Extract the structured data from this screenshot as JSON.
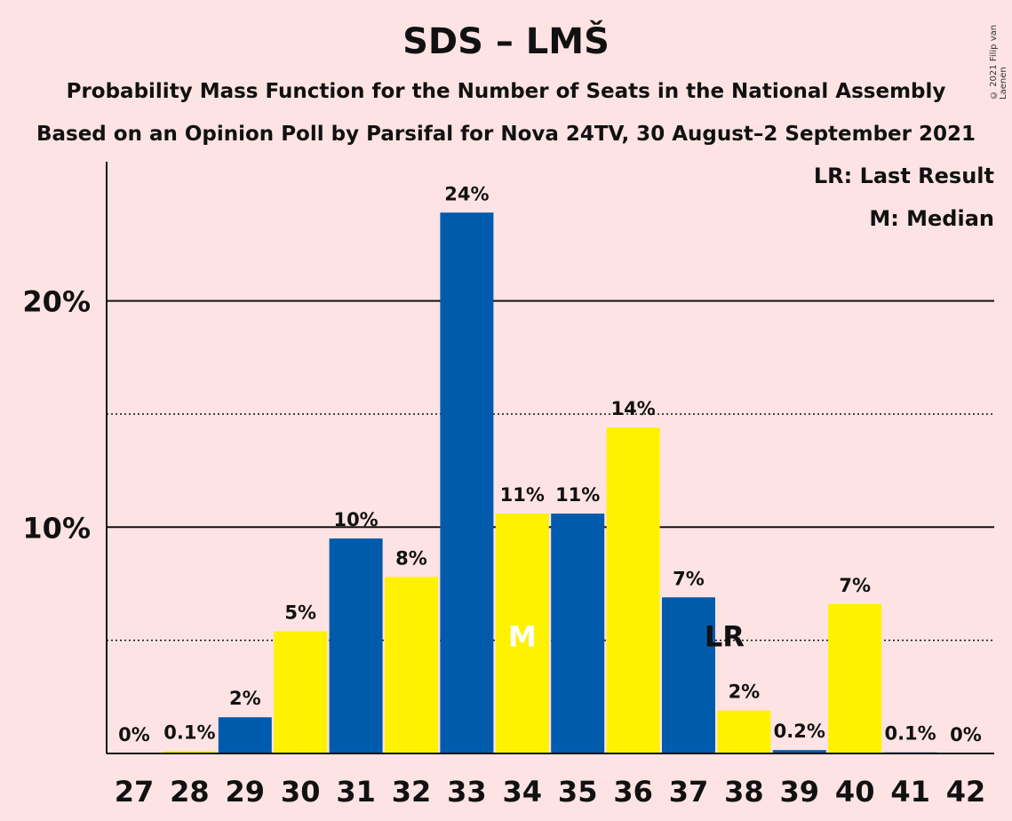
{
  "header": {
    "title": "SDS – LMŠ",
    "subtitle1": "Probability Mass Function for the Number of Seats in the National Assembly",
    "subtitle2": "Based on an Opinion Poll by Parsifal for Nova 24TV, 30 August–2 September 2021",
    "copyright": "© 2021 Filip van Laenen"
  },
  "legend": {
    "last_result": "LR: Last Result",
    "median": "M: Median"
  },
  "colors": {
    "background": "#FDE3E4",
    "blue": "#005BAC",
    "yellow": "#FFF200"
  },
  "chart_data": {
    "type": "bar",
    "categories": [
      "27",
      "28",
      "29",
      "30",
      "31",
      "32",
      "33",
      "34",
      "35",
      "36",
      "37",
      "38",
      "39",
      "40",
      "41",
      "42"
    ],
    "values": [
      0,
      0.1,
      1.6,
      5.4,
      9.5,
      7.8,
      23.9,
      10.6,
      10.6,
      14.4,
      6.9,
      1.9,
      0.15,
      6.6,
      0.05,
      0
    ],
    "labels": [
      "0%",
      "0.1%",
      "2%",
      "5%",
      "10%",
      "8%",
      "24%",
      "11%",
      "11%",
      "14%",
      "7%",
      "2%",
      "0.2%",
      "7%",
      "0.1%",
      "0%"
    ],
    "bar_colors": [
      "blue",
      "yellow",
      "blue",
      "yellow",
      "blue",
      "yellow",
      "blue",
      "yellow",
      "blue",
      "yellow",
      "blue",
      "yellow",
      "blue",
      "yellow",
      "blue",
      "yellow"
    ],
    "ylim": [
      0,
      26
    ],
    "yticks": [
      {
        "value": 10,
        "label": "10%"
      },
      {
        "value": 20,
        "label": "20%"
      }
    ],
    "dotted_gridlines": [
      5,
      15
    ],
    "markers": [
      {
        "category": "34",
        "text": "M",
        "value": 5.2
      },
      {
        "category": "38",
        "text": "LR",
        "value": 5.2
      }
    ]
  }
}
